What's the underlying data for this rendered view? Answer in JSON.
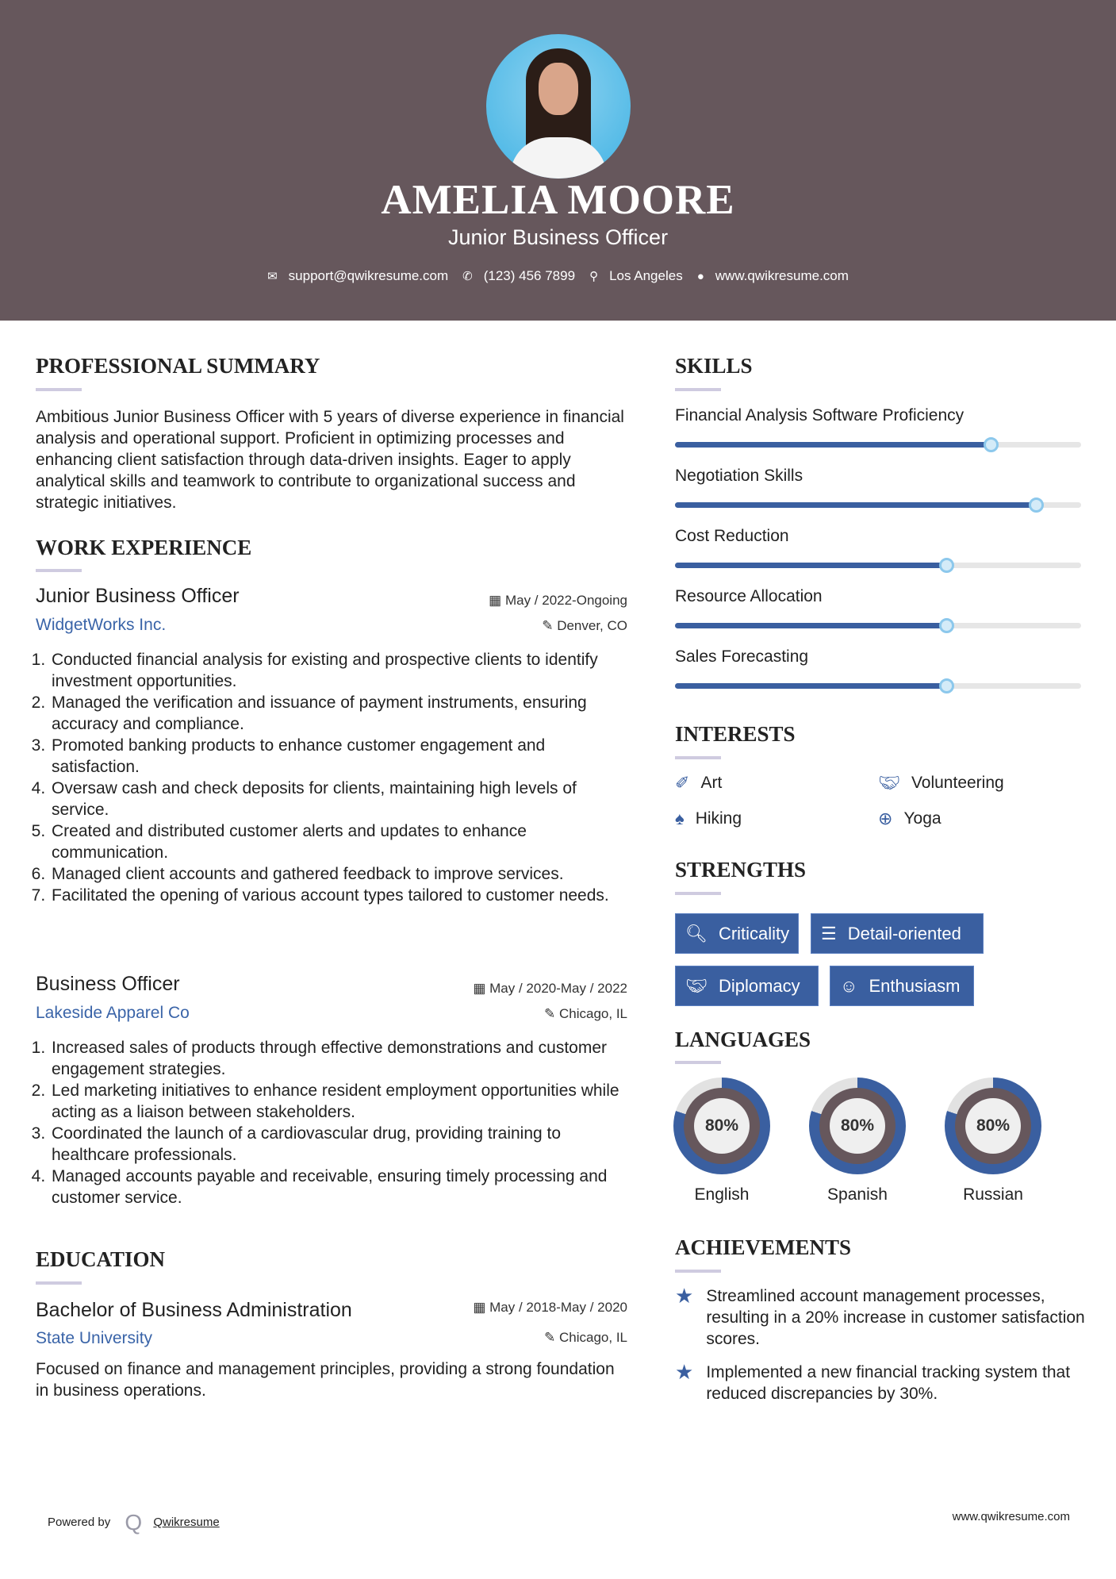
{
  "header": {
    "name": "AMELIA MOORE",
    "title": "Junior Business Officer",
    "email": "support@qwikresume.com",
    "phone": "(123) 456 7899",
    "location": "Los Angeles",
    "website": "www.qwikresume.com"
  },
  "summary": {
    "heading": "PROFESSIONAL SUMMARY",
    "text": "Ambitious Junior Business Officer with 5 years of diverse experience in financial analysis and operational support. Proficient in optimizing processes and enhancing client satisfaction through data-driven insights. Eager to apply analytical skills and teamwork to contribute to organizational success and strategic initiatives."
  },
  "experience": {
    "heading": "WORK EXPERIENCE",
    "jobs": [
      {
        "title": "Junior Business Officer",
        "company": "WidgetWorks Inc.",
        "dates": "May / 2022-Ongoing",
        "location": "Denver, CO",
        "bullets": [
          "Conducted financial analysis for existing and prospective clients to identify investment opportunities.",
          "Managed the verification and issuance of payment instruments, ensuring accuracy and compliance.",
          "Promoted banking products to enhance customer engagement and satisfaction.",
          "Oversaw cash and check deposits for clients, maintaining high levels of service.",
          "Created and distributed customer alerts and updates to enhance communication.",
          "Managed client accounts and gathered feedback to improve services.",
          "Facilitated the opening of various account types tailored to customer needs."
        ]
      },
      {
        "title": "Business Officer",
        "company": "Lakeside Apparel Co",
        "dates": "May / 2020-May / 2022",
        "location": "Chicago, IL",
        "bullets": [
          "Increased sales of products through effective demonstrations and customer engagement strategies.",
          "Led marketing initiatives to enhance resident employment opportunities while acting as a liaison between stakeholders.",
          "Coordinated the launch of a cardiovascular drug, providing training to healthcare professionals.",
          "Managed accounts payable and receivable, ensuring timely processing and customer service."
        ]
      }
    ]
  },
  "education": {
    "heading": "EDUCATION",
    "degree": "Bachelor of Business Administration",
    "school": "State University",
    "dates": "May / 2018-May / 2020",
    "location": "Chicago, IL",
    "text": "Focused on finance and management principles, providing a strong foundation in business operations."
  },
  "skills": {
    "heading": "SKILLS",
    "items": [
      {
        "label": "Financial Analysis Software Proficiency",
        "level": 0.78
      },
      {
        "label": "Negotiation Skills",
        "level": 0.89
      },
      {
        "label": "Cost Reduction",
        "level": 0.67
      },
      {
        "label": "Resource Allocation",
        "level": 0.67
      },
      {
        "label": "Sales Forecasting",
        "level": 0.67
      }
    ]
  },
  "interests": {
    "heading": "INTERESTS",
    "items": [
      {
        "label": "Art",
        "icon": "paintbrush-icon"
      },
      {
        "label": "Volunteering",
        "icon": "handshake-icon"
      },
      {
        "label": "Hiking",
        "icon": "tree-icon"
      },
      {
        "label": "Yoga",
        "icon": "lifebuoy-icon"
      }
    ]
  },
  "strengths": {
    "heading": "STRENGTHS",
    "items": [
      {
        "label": "Criticality",
        "icon": "search-icon"
      },
      {
        "label": "Detail-oriented",
        "icon": "list-icon"
      },
      {
        "label": "Diplomacy",
        "icon": "handshake-icon"
      },
      {
        "label": "Enthusiasm",
        "icon": "smile-icon"
      }
    ]
  },
  "languages": {
    "heading": "LANGUAGES",
    "items": [
      {
        "label": "English",
        "value": "80%",
        "level": 0.8
      },
      {
        "label": "Spanish",
        "value": "80%",
        "level": 0.8
      },
      {
        "label": "Russian",
        "value": "80%",
        "level": 0.8
      }
    ]
  },
  "achievements": {
    "heading": "ACHIEVEMENTS",
    "items": [
      "Streamlined account management processes, resulting in a 20% increase in customer satisfaction scores.",
      "Implemented a new financial tracking system that reduced discrepancies by 30%."
    ]
  },
  "footer": {
    "powered_by": "Powered by",
    "brand": "Qwikresume",
    "website": "www.qwikresume.com"
  },
  "colors": {
    "header_bg": "#66575c",
    "accent": "#3a5fa0",
    "link": "#3a64a8"
  }
}
